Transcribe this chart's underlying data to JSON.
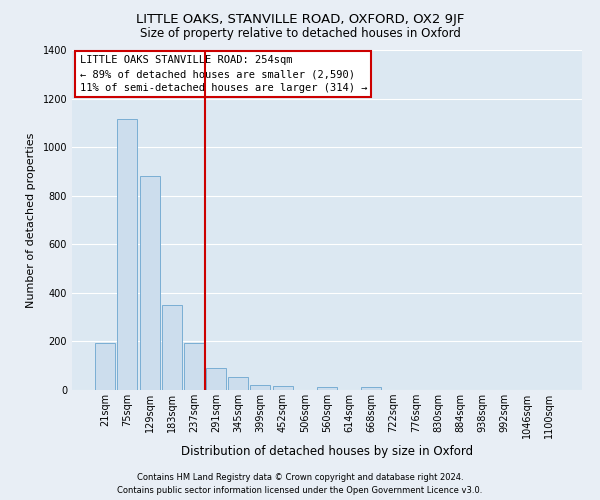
{
  "title": "LITTLE OAKS, STANVILLE ROAD, OXFORD, OX2 9JF",
  "subtitle": "Size of property relative to detached houses in Oxford",
  "xlabel": "Distribution of detached houses by size in Oxford",
  "ylabel": "Number of detached properties",
  "categories": [
    "21sqm",
    "75sqm",
    "129sqm",
    "183sqm",
    "237sqm",
    "291sqm",
    "345sqm",
    "399sqm",
    "452sqm",
    "506sqm",
    "560sqm",
    "614sqm",
    "668sqm",
    "722sqm",
    "776sqm",
    "830sqm",
    "884sqm",
    "938sqm",
    "992sqm",
    "1046sqm",
    "1100sqm"
  ],
  "bar_values": [
    195,
    1115,
    880,
    350,
    195,
    90,
    55,
    22,
    15,
    0,
    12,
    0,
    12,
    0,
    0,
    0,
    0,
    0,
    0,
    0,
    0
  ],
  "bar_color": "#ccdded",
  "bar_edge_color": "#7aaed4",
  "vline_color": "#cc0000",
  "annotation_title": "LITTLE OAKS STANVILLE ROAD: 254sqm",
  "annotation_line1": "← 89% of detached houses are smaller (2,590)",
  "annotation_line2": "11% of semi-detached houses are larger (314) →",
  "annotation_box_color": "#cc0000",
  "footnote1": "Contains HM Land Registry data © Crown copyright and database right 2024.",
  "footnote2": "Contains public sector information licensed under the Open Government Licence v3.0.",
  "ylim": [
    0,
    1400
  ],
  "yticks": [
    0,
    200,
    400,
    600,
    800,
    1000,
    1200,
    1400
  ],
  "background_color": "#e8eef5",
  "plot_bg_color": "#dce8f2",
  "grid_color": "#ffffff",
  "title_fontsize": 9.5,
  "subtitle_fontsize": 8.5,
  "xlabel_fontsize": 8.5,
  "ylabel_fontsize": 8.0,
  "tick_fontsize": 7.0,
  "ann_fontsize": 7.5,
  "footnote_fontsize": 6.0
}
